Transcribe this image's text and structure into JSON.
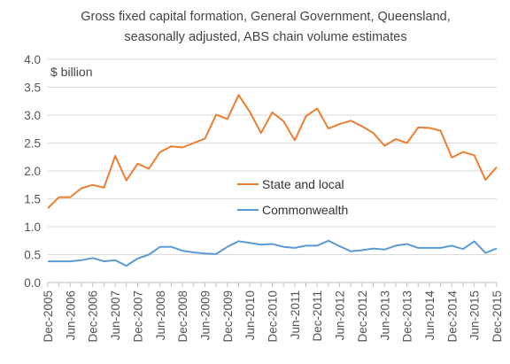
{
  "chart_data": {
    "type": "line",
    "title_lines": [
      "Gross fixed capital formation,  General Government,  Queensland,",
      "seasonally adjusted, ABS chain volume estimates"
    ],
    "ylabel": "$ billion",
    "xlabel": "",
    "ylim": [
      0,
      4
    ],
    "yticks": [
      "0.0",
      "0.5",
      "1.0",
      "1.5",
      "2.0",
      "2.5",
      "3.0",
      "3.5",
      "4.0"
    ],
    "grid": "horizontal",
    "legend_position": "center-right",
    "x_tick_labels": [
      "Dec-2005",
      "Jun-2006",
      "Dec-2006",
      "Jun-2007",
      "Dec-2007",
      "Jun-2008",
      "Dec-2008",
      "Jun-2009",
      "Dec-2009",
      "Jun-2010",
      "Dec-2010",
      "Jun-2011",
      "Dec-2011",
      "Jun-2012",
      "Dec-2012",
      "Jun-2013",
      "Dec-2013",
      "Jun-2014",
      "Dec-2014",
      "Jun-2015",
      "Dec-2015"
    ],
    "x": [
      "Dec-2005",
      "Mar-2006",
      "Jun-2006",
      "Sep-2006",
      "Dec-2006",
      "Mar-2007",
      "Jun-2007",
      "Sep-2007",
      "Dec-2007",
      "Mar-2008",
      "Jun-2008",
      "Sep-2008",
      "Dec-2008",
      "Mar-2009",
      "Jun-2009",
      "Sep-2009",
      "Dec-2009",
      "Mar-2010",
      "Jun-2010",
      "Sep-2010",
      "Dec-2010",
      "Mar-2011",
      "Jun-2011",
      "Sep-2011",
      "Dec-2011",
      "Mar-2012",
      "Jun-2012",
      "Sep-2012",
      "Dec-2012",
      "Mar-2013",
      "Jun-2013",
      "Sep-2013",
      "Dec-2013",
      "Mar-2014",
      "Jun-2014",
      "Sep-2014",
      "Dec-2014",
      "Mar-2015",
      "Jun-2015",
      "Sep-2015",
      "Dec-2015"
    ],
    "series": [
      {
        "name": "State and local",
        "color": "#ED7D31",
        "values": [
          1.33,
          1.53,
          1.53,
          1.69,
          1.75,
          1.7,
          2.27,
          1.83,
          2.13,
          2.04,
          2.34,
          2.44,
          2.42,
          2.5,
          2.58,
          3.01,
          2.93,
          3.36,
          3.06,
          2.68,
          3.05,
          2.89,
          2.55,
          2.98,
          3.12,
          2.76,
          2.84,
          2.9,
          2.8,
          2.68,
          2.45,
          2.57,
          2.5,
          2.78,
          2.77,
          2.72,
          2.24,
          2.34,
          2.28,
          1.84,
          2.07
        ]
      },
      {
        "name": "Commonwealth",
        "color": "#5B9BD5",
        "values": [
          0.38,
          0.38,
          0.38,
          0.4,
          0.44,
          0.38,
          0.4,
          0.3,
          0.43,
          0.5,
          0.64,
          0.64,
          0.57,
          0.54,
          0.52,
          0.51,
          0.64,
          0.74,
          0.71,
          0.68,
          0.69,
          0.64,
          0.62,
          0.66,
          0.66,
          0.75,
          0.65,
          0.56,
          0.58,
          0.61,
          0.59,
          0.66,
          0.69,
          0.62,
          0.62,
          0.62,
          0.66,
          0.6,
          0.74,
          0.53,
          0.61
        ]
      }
    ]
  }
}
